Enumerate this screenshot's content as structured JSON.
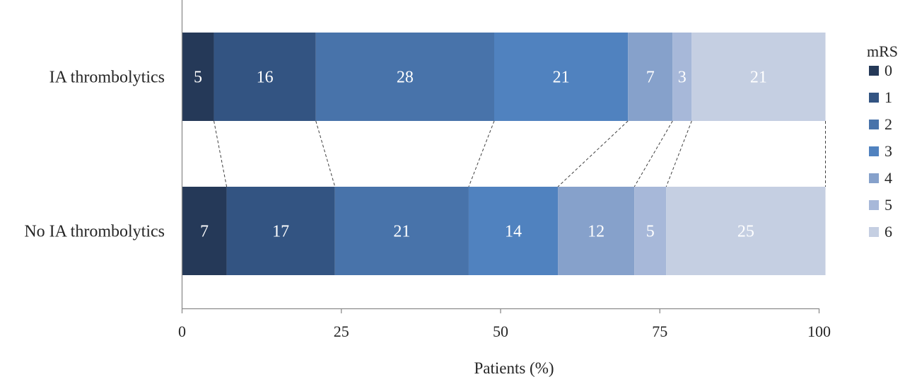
{
  "chart_data": {
    "type": "bar",
    "orientation": "horizontal",
    "stacked": true,
    "title": "",
    "xlabel": "Patients (%)",
    "ylabel": "",
    "xlim": [
      0,
      100
    ],
    "x_ticks": [
      "0",
      "25",
      "50",
      "75",
      "100"
    ],
    "categories": [
      "IA thrombolytics",
      "No IA thrombolytics"
    ],
    "legend": {
      "title": "mRS",
      "position": "right"
    },
    "series": [
      {
        "name": "0",
        "color": "#253958",
        "values": [
          5,
          7
        ]
      },
      {
        "name": "1",
        "color": "#335482",
        "values": [
          16,
          17
        ]
      },
      {
        "name": "2",
        "color": "#4873aa",
        "values": [
          28,
          21
        ]
      },
      {
        "name": "3",
        "color": "#5082bf",
        "values": [
          21,
          14
        ]
      },
      {
        "name": "4",
        "color": "#86a1cb",
        "values": [
          7,
          12
        ]
      },
      {
        "name": "5",
        "color": "#a7b8d9",
        "values": [
          3,
          5
        ]
      },
      {
        "name": "6",
        "color": "#c5cfe2",
        "values": [
          21,
          25
        ]
      }
    ],
    "grid": false,
    "connector_lines": "dashed"
  }
}
